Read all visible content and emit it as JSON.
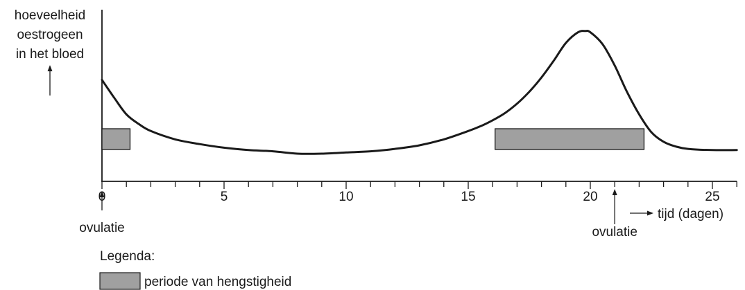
{
  "chart_data": {
    "type": "line",
    "ylabel": [
      "hoeveelheid",
      "oestrogeen",
      "in het bloed"
    ],
    "xlabel": "tijd (dagen)",
    "xlim": [
      0,
      26
    ],
    "xticks_major": [
      0,
      5,
      10,
      15,
      20,
      25
    ],
    "xticks_minor_step": 1,
    "series": [
      {
        "x": [
          0,
          0.5,
          1,
          1.5,
          2,
          3,
          4,
          5,
          6,
          7,
          8,
          9,
          10,
          11,
          12,
          13,
          14,
          15,
          15.5,
          16,
          16.5,
          17,
          17.5,
          18,
          18.5,
          19,
          19.5,
          19.8,
          20,
          20.5,
          21,
          21.5,
          22,
          22.5,
          23,
          23.5,
          24,
          25,
          26
        ],
        "y": [
          0.62,
          0.47,
          0.33,
          0.25,
          0.19,
          0.12,
          0.08,
          0.05,
          0.03,
          0.02,
          0.0,
          0.0,
          0.01,
          0.02,
          0.04,
          0.07,
          0.12,
          0.19,
          0.23,
          0.28,
          0.34,
          0.42,
          0.52,
          0.64,
          0.78,
          0.93,
          1.02,
          1.03,
          1.02,
          0.92,
          0.74,
          0.52,
          0.33,
          0.18,
          0.1,
          0.06,
          0.04,
          0.03,
          0.03
        ]
      }
    ],
    "periods": [
      {
        "start": 0,
        "end": 1.15
      },
      {
        "start": 16.1,
        "end": 22.2
      }
    ],
    "annotations": [
      {
        "text": "ovulatie",
        "x": 0
      },
      {
        "text": "ovulatie",
        "x": 21
      }
    ],
    "legend": {
      "title": "Legenda:",
      "entries": [
        {
          "label": "periode van hengstigheid",
          "color": "#a0a0a0"
        }
      ]
    },
    "colors": {
      "line": "#1a1a1a",
      "period_fill": "#a0a0a0"
    }
  }
}
